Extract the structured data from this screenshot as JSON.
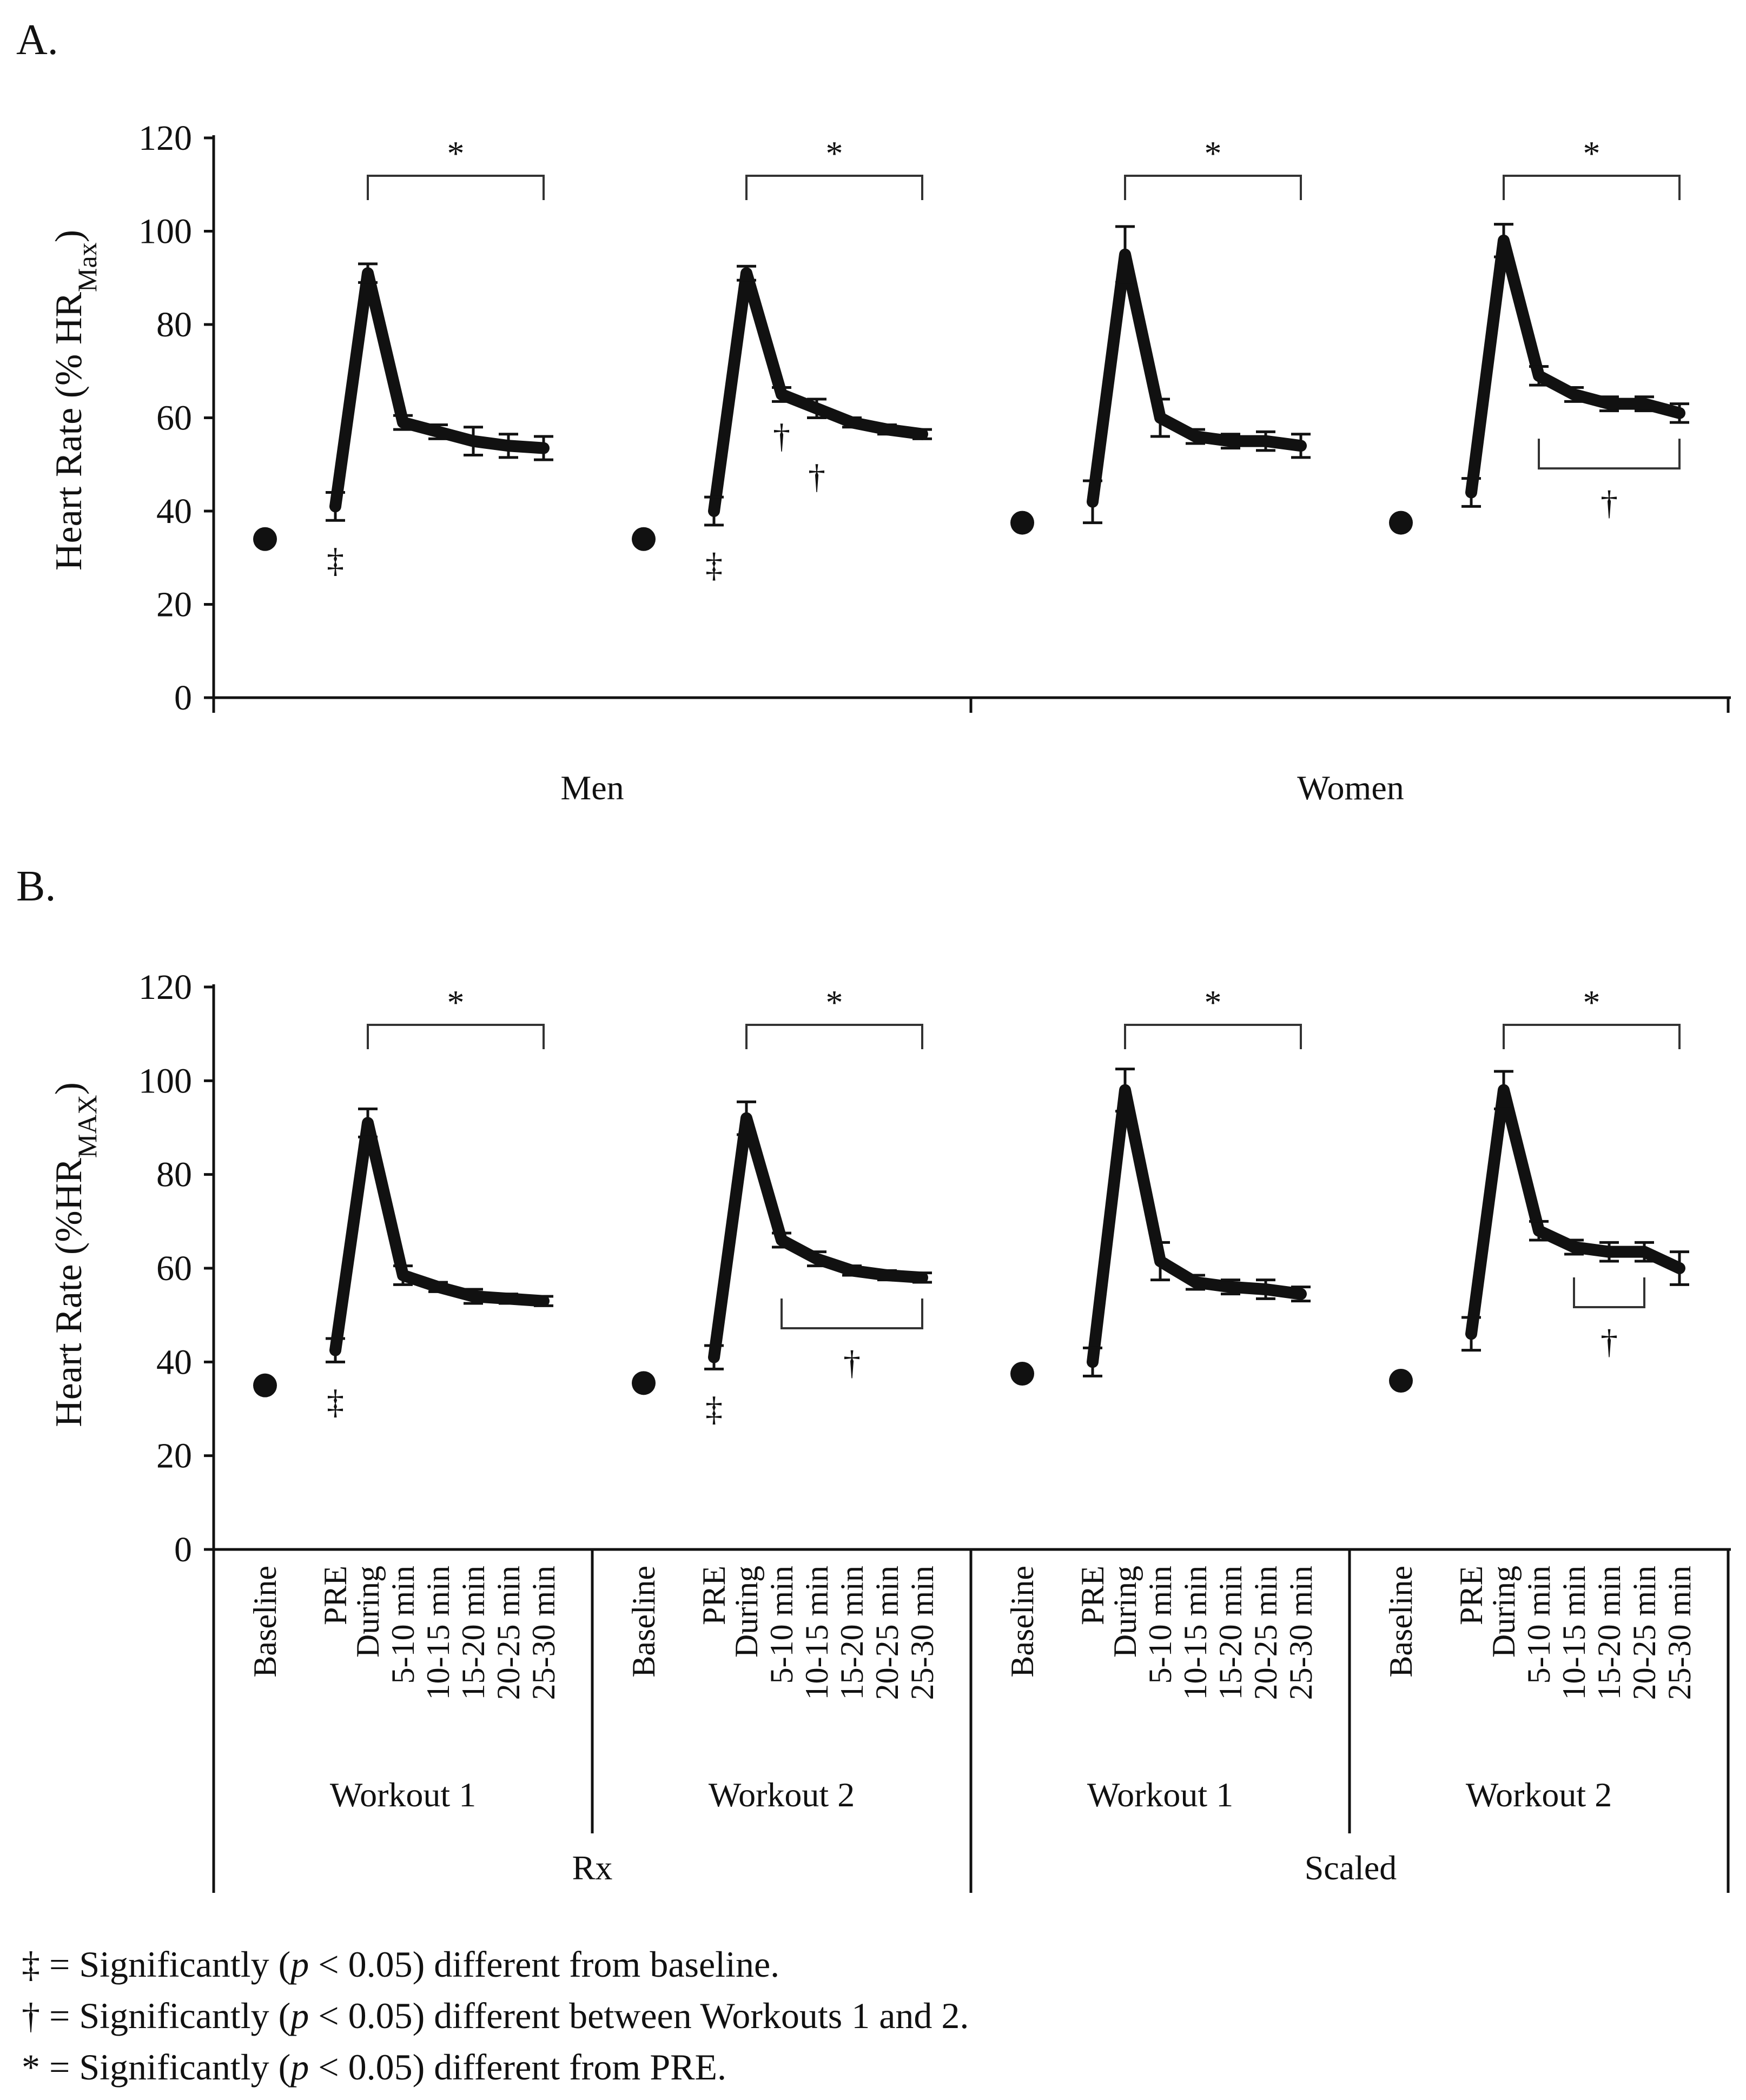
{
  "chart_data": {
    "type": "line",
    "y_axis": {
      "ylim": [
        0,
        120
      ],
      "ticks": [
        "0",
        "20",
        "40",
        "60",
        "80",
        "100",
        "120"
      ]
    },
    "categories": [
      "Baseline",
      "PRE",
      "During",
      "5-10 min",
      "10-15 min",
      "15-20 min",
      "20-25 min",
      "25-30 min"
    ],
    "panels": [
      {
        "label": "A.",
        "ylabel_main": "Heart Rate (% HR",
        "ylabel_sub": "Max",
        "ylabel_end": ")",
        "groups": [
          "Men",
          "Women"
        ],
        "series": [
          {
            "name": "Men – Workout 1",
            "baseline": 34,
            "values": [
              41,
              91,
              59,
              57,
              55,
              54,
              53.5
            ],
            "errors": [
              3,
              2,
              1.5,
              1.5,
              3,
              2.5,
              2.5
            ],
            "above_label": "*",
            "below_label": "‡",
            "below_at": 1,
            "dagger": ""
          },
          {
            "name": "Men – Workout 2",
            "baseline": 34,
            "values": [
              40,
              91,
              65,
              62,
              59,
              57.5,
              56.5
            ],
            "errors": [
              3,
              1.5,
              1.5,
              2,
              1,
              1,
              1
            ],
            "above_label": "*",
            "below_label": "‡",
            "below_at": 1,
            "dagger": "†",
            "dagger_points": [
              3,
              4
            ]
          },
          {
            "name": "Women – Workout 1",
            "baseline": 37.5,
            "values": [
              42,
              95,
              60,
              56,
              55,
              55,
              54
            ],
            "errors": [
              4.5,
              6,
              4,
              1.5,
              1.5,
              2,
              2.5
            ],
            "above_label": "*",
            "below_label": "",
            "dagger": ""
          },
          {
            "name": "Women – Workout 2",
            "baseline": 37.5,
            "values": [
              44,
              98,
              69,
              65,
              63,
              63,
              61
            ],
            "errors": [
              3,
              3.5,
              2,
              1.5,
              1.5,
              1.5,
              2
            ],
            "above_label": "*",
            "below_label": "",
            "dagger": "†",
            "dagger_range": [
              3,
              7
            ]
          }
        ]
      },
      {
        "label": "B.",
        "ylabel_main": "Heart Rate (%HR",
        "ylabel_sub": "MAX",
        "ylabel_end": ")",
        "groups": [
          "Rx",
          "Scaled"
        ],
        "subgroups": [
          "Workout 1",
          "Workout 2",
          "Workout 1",
          "Workout 2"
        ],
        "series": [
          {
            "name": "Rx – Workout 1",
            "baseline": 35,
            "values": [
              42.5,
              91,
              58.5,
              56,
              54,
              53.5,
              53
            ],
            "errors": [
              2.5,
              3,
              2,
              1,
              1.5,
              1,
              1
            ],
            "above_label": "*",
            "below_label": "‡",
            "below_at": 1,
            "dagger": ""
          },
          {
            "name": "Rx – Workout 2",
            "baseline": 35.5,
            "values": [
              41,
              92,
              66,
              62,
              59.5,
              58.5,
              58
            ],
            "errors": [
              2.5,
              3.5,
              1.5,
              1.5,
              1,
              1,
              1
            ],
            "above_label": "*",
            "below_label": "‡",
            "below_at": 1,
            "dagger": "†",
            "dagger_range": [
              3,
              7
            ]
          },
          {
            "name": "Scaled – Workout 1",
            "baseline": 37.5,
            "values": [
              40,
              98,
              61.5,
              57,
              56,
              55.5,
              54.5
            ],
            "errors": [
              3,
              4.5,
              4,
              1.5,
              1.5,
              2,
              1.5
            ],
            "above_label": "*",
            "below_label": "",
            "dagger": ""
          },
          {
            "name": "Scaled – Workout 2",
            "baseline": 36,
            "values": [
              46,
              98,
              68,
              64.5,
              63.5,
              63.5,
              60
            ],
            "errors": [
              3.5,
              4,
              2,
              1.5,
              2,
              2,
              3.5
            ],
            "above_label": "*",
            "below_label": "",
            "dagger": "†",
            "dagger_range": [
              4,
              6
            ]
          }
        ]
      }
    ]
  },
  "legend": [
    {
      "symbol": "‡",
      "text": " = Significantly (",
      "italic": "p",
      "rest": " < 0.05) different from baseline."
    },
    {
      "symbol": "†",
      "text": " = Significantly (",
      "italic": "p",
      "rest": " < 0.05) different between Workouts 1 and 2."
    },
    {
      "symbol": "*",
      "text": " = Significantly (",
      "italic": "p",
      "rest": " < 0.05) different from PRE."
    }
  ]
}
